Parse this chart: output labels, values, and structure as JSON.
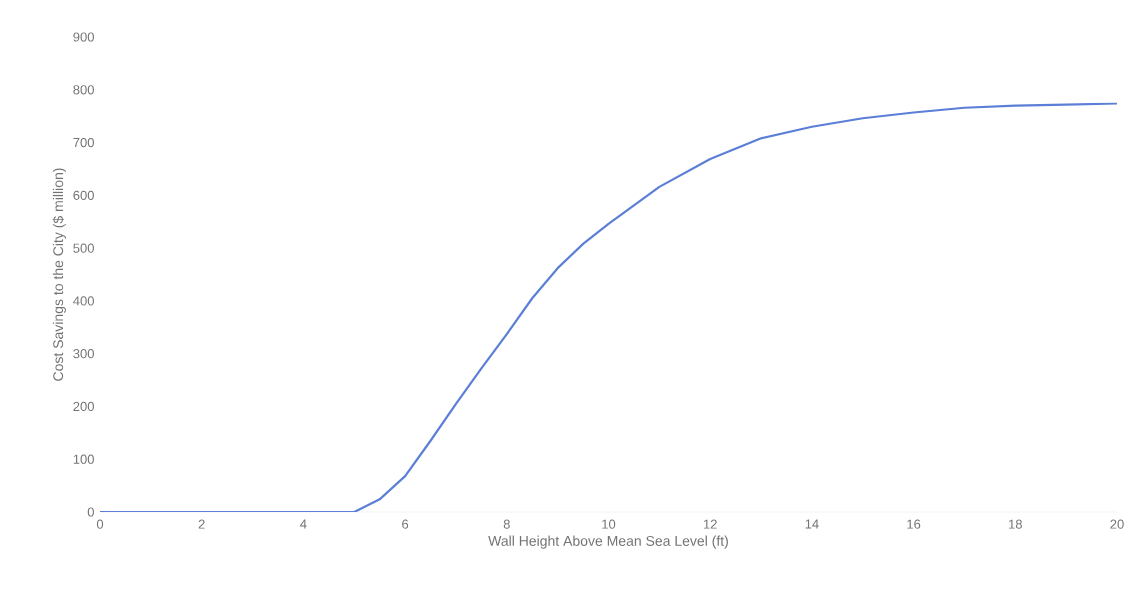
{
  "chart_data": {
    "type": "line",
    "xlabel": "Wall Height Above Mean Sea Level (ft)",
    "ylabel": "Cost Savings to the City ($ million)",
    "x": [
      0,
      1,
      2,
      3,
      4,
      5,
      5.5,
      6,
      6.5,
      7,
      7.5,
      8,
      8.5,
      9,
      9.5,
      10,
      11,
      12,
      13,
      14,
      15,
      16,
      17,
      18,
      19,
      20
    ],
    "series": [
      {
        "color": "#5b7fd6",
        "values": [
          0,
          0,
          0,
          0,
          0,
          0,
          24,
          68,
          135,
          205,
          272,
          337,
          405,
          462,
          508,
          546,
          616,
          669,
          708,
          730,
          746,
          757,
          766,
          770,
          772,
          774
        ]
      }
    ],
    "xlim": [
      0,
      20
    ],
    "ylim": [
      0,
      900
    ],
    "xticks": [
      0,
      2,
      4,
      6,
      8,
      10,
      12,
      14,
      16,
      18,
      20
    ],
    "yticks": [
      0,
      100,
      200,
      300,
      400,
      500,
      600,
      700,
      800,
      900
    ],
    "grid": false,
    "marker": "none",
    "line_style": "solid"
  }
}
